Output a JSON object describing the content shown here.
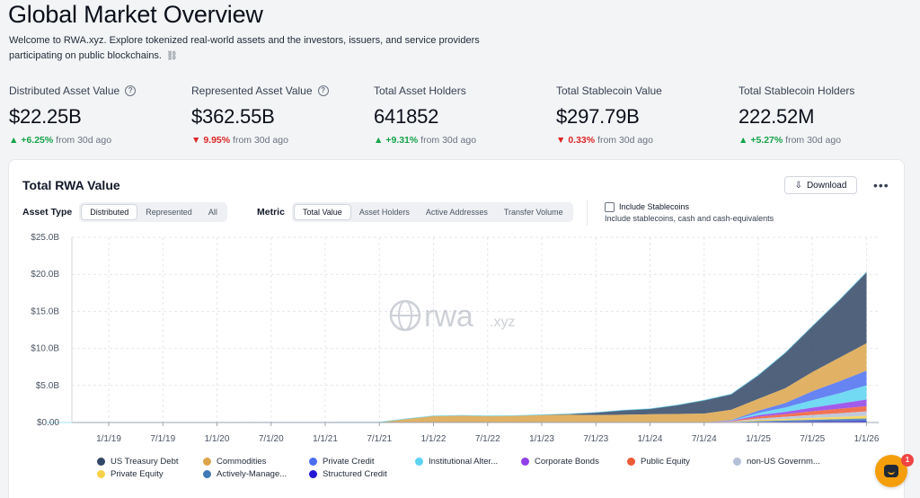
{
  "page": {
    "title": "Global Market Overview",
    "subtitle": "Welcome to RWA.xyz. Explore tokenized real-world assets and the investors, issuers, and service providers participating on public blockchains."
  },
  "stats": [
    {
      "label": "Distributed Asset Value",
      "info": true,
      "value": "$22.25B",
      "direction": "up",
      "change": "+6.25%",
      "period": "from 30d ago"
    },
    {
      "label": "Represented Asset Value",
      "info": true,
      "value": "$362.55B",
      "direction": "down",
      "change": "9.95%",
      "period": "from 30d ago"
    },
    {
      "label": "Total Asset Holders",
      "info": false,
      "value": "641852",
      "direction": "up",
      "change": "+9.31%",
      "period": "from 30d ago"
    },
    {
      "label": "Total Stablecoin Value",
      "info": false,
      "value": "$297.79B",
      "direction": "down",
      "change": "0.33%",
      "period": "from 30d ago"
    },
    {
      "label": "Total Stablecoin Holders",
      "info": false,
      "value": "222.52M",
      "direction": "up",
      "change": "+5.27%",
      "period": "from 30d ago"
    }
  ],
  "card": {
    "title": "Total RWA Value",
    "download_label": "Download",
    "more_label": "•••",
    "asset_type": {
      "label": "Asset Type",
      "options": [
        "Distributed",
        "Represented",
        "All"
      ],
      "selected": "Distributed"
    },
    "metric": {
      "label": "Metric",
      "options": [
        "Total Value",
        "Asset Holders",
        "Active Addresses",
        "Transfer Volume"
      ],
      "selected": "Total Value"
    },
    "stablecoins": {
      "label": "Include Stablecoins",
      "sublabel": "Include stablecoins, cash and cash-equivalents",
      "checked": false
    },
    "watermark": "rwa",
    "watermark_suffix": ".xyz"
  },
  "chart_data": {
    "type": "area",
    "stacked": true,
    "y_ticks": [
      "$0.00",
      "$5.0B",
      "$10.0B",
      "$15.0B",
      "$20.0B",
      "$25.0B"
    ],
    "ylim": [
      0,
      25
    ],
    "y_unit": "B USD",
    "x_ticks": [
      "1/1/19",
      "7/1/19",
      "1/1/20",
      "7/1/20",
      "1/1/21",
      "7/1/21",
      "1/1/22",
      "7/1/22",
      "1/1/23",
      "7/1/23",
      "1/1/24",
      "7/1/24",
      "1/1/25",
      "7/1/25",
      "1/1/26"
    ],
    "x": [
      "2018-06",
      "2019-01",
      "2019-07",
      "2020-01",
      "2020-07",
      "2021-01",
      "2021-07",
      "2021-10",
      "2022-01",
      "2022-04",
      "2022-07",
      "2022-10",
      "2023-01",
      "2023-04",
      "2023-07",
      "2023-10",
      "2024-01",
      "2024-04",
      "2024-07",
      "2024-10",
      "2025-01",
      "2025-04",
      "2025-07",
      "2025-10",
      "2026-01"
    ],
    "grid": true,
    "legend_position": "bottom",
    "series": [
      {
        "name": "US Treasury Debt",
        "color": "#334766",
        "values": [
          0,
          0,
          0,
          0,
          0,
          0,
          0,
          0,
          0,
          0,
          0,
          0,
          0.05,
          0.1,
          0.35,
          0.6,
          0.75,
          1.2,
          1.8,
          2.1,
          3.2,
          4.8,
          6.2,
          7.8,
          9.6
        ]
      },
      {
        "name": "Commodities",
        "color": "#dca54a",
        "values": [
          0,
          0,
          0,
          0,
          0.01,
          0.02,
          0.05,
          0.5,
          0.9,
          0.95,
          0.9,
          0.92,
          1.0,
          1.05,
          1.0,
          1.05,
          1.1,
          1.15,
          1.2,
          1.4,
          1.6,
          2.0,
          2.6,
          3.2,
          3.7
        ]
      },
      {
        "name": "Private Credit",
        "color": "#4b6ef0",
        "values": [
          0,
          0,
          0,
          0,
          0,
          0,
          0,
          0,
          0,
          0,
          0,
          0,
          0,
          0,
          0,
          0,
          0,
          0,
          0,
          0.05,
          0.3,
          0.6,
          1.2,
          1.6,
          2.0
        ]
      },
      {
        "name": "Institutional Alter...",
        "color": "#5bd3f2",
        "values": [
          0,
          0,
          0,
          0,
          0,
          0,
          0,
          0,
          0,
          0,
          0,
          0,
          0,
          0,
          0,
          0,
          0,
          0,
          0,
          0.05,
          0.3,
          0.6,
          1.0,
          1.4,
          1.9
        ]
      },
      {
        "name": "Corporate Bonds",
        "color": "#9140e8",
        "values": [
          0,
          0,
          0,
          0,
          0,
          0,
          0,
          0,
          0,
          0,
          0,
          0,
          0,
          0,
          0,
          0,
          0,
          0,
          0,
          0.05,
          0.2,
          0.3,
          0.5,
          0.7,
          0.9
        ]
      },
      {
        "name": "Public Equity",
        "color": "#ee5a36",
        "values": [
          0,
          0,
          0,
          0,
          0,
          0,
          0,
          0,
          0,
          0,
          0,
          0,
          0,
          0,
          0,
          0,
          0,
          0,
          0,
          0.05,
          0.25,
          0.35,
          0.5,
          0.6,
          0.7
        ]
      },
      {
        "name": "non-US Governm...",
        "color": "#b5c0d6",
        "values": [
          0,
          0,
          0,
          0,
          0,
          0,
          0,
          0,
          0,
          0,
          0,
          0,
          0,
          0,
          0,
          0,
          0,
          0,
          0,
          0.05,
          0.2,
          0.3,
          0.4,
          0.5,
          0.6
        ]
      },
      {
        "name": "Private Equity",
        "color": "#f6d24a",
        "values": [
          0,
          0,
          0,
          0,
          0,
          0,
          0,
          0,
          0,
          0,
          0,
          0,
          0,
          0,
          0,
          0,
          0,
          0,
          0,
          0.03,
          0.15,
          0.2,
          0.25,
          0.3,
          0.35
        ]
      },
      {
        "name": "Actively-Manage...",
        "color": "#3f7ab5",
        "values": [
          0,
          0,
          0,
          0,
          0,
          0,
          0,
          0,
          0,
          0,
          0,
          0,
          0,
          0,
          0,
          0,
          0,
          0,
          0,
          0.02,
          0.1,
          0.15,
          0.2,
          0.25,
          0.3
        ]
      },
      {
        "name": "Structured Credit",
        "color": "#2416d4",
        "values": [
          0,
          0,
          0,
          0,
          0,
          0,
          0,
          0,
          0,
          0,
          0,
          0,
          0,
          0,
          0,
          0,
          0,
          0,
          0,
          0.02,
          0.08,
          0.12,
          0.16,
          0.2,
          0.25
        ]
      }
    ]
  },
  "chat": {
    "badge": "1"
  }
}
